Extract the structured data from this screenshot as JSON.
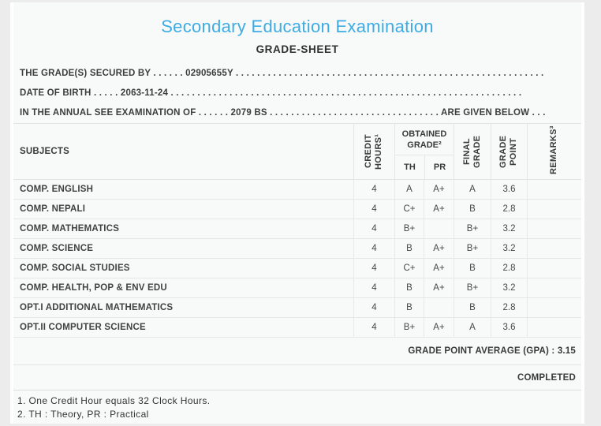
{
  "page": {
    "title": "Secondary Education Examination",
    "subtitle": "GRADE-SHEET"
  },
  "colors": {
    "title_accent": "#3dace4",
    "panel_background": "#f8f9f9",
    "outer_background": "#ececec",
    "table_border": "#e6e6e6",
    "text": "#3f3f3f"
  },
  "info_lines": [
    "THE GRADE(S) SECURED BY . . . . . . 02905655Y . . . . . . . . . . . . . . . . . . . . . . . . . . . . . . . . . . . . . . . . . . . . . . . . . . . . . . . . . .",
    "DATE OF BIRTH . . . . . 2063-11-24 . . . . . . . . . . . . . . . . . . . . . . . . . . . . . . . . . . . . . . . . . . . . . . . . . . . . . . . . . . . . . . . . . .",
    "IN THE ANNUAL SEE EXAMINATION OF . . . . . . 2079 BS . . . . . . . . . . . . . . . . . . . . . . . . . . . . . . . . ARE GIVEN BELOW . . ."
  ],
  "table": {
    "headers": {
      "subjects": "SUBJECTS",
      "credit_hours": "CREDIT HOURS¹",
      "obtained_grade": "OBTAINED GRADE²",
      "th": "TH",
      "pr": "PR",
      "final_grade": "FINAL GRADE",
      "grade_point": "GRADE POINT",
      "remarks": "REMARKS³"
    },
    "rows": [
      {
        "subject": "COMP. ENGLISH",
        "credit": "4",
        "th": "A",
        "pr": "A+",
        "final": "A",
        "point": "3.6",
        "remarks": ""
      },
      {
        "subject": "COMP. NEPALI",
        "credit": "4",
        "th": "C+",
        "pr": "A+",
        "final": "B",
        "point": "2.8",
        "remarks": ""
      },
      {
        "subject": "COMP. MATHEMATICS",
        "credit": "4",
        "th": "B+",
        "pr": "",
        "final": "B+",
        "point": "3.2",
        "remarks": ""
      },
      {
        "subject": "COMP. SCIENCE",
        "credit": "4",
        "th": "B",
        "pr": "A+",
        "final": "B+",
        "point": "3.2",
        "remarks": ""
      },
      {
        "subject": "COMP. SOCIAL STUDIES",
        "credit": "4",
        "th": "C+",
        "pr": "A+",
        "final": "B",
        "point": "2.8",
        "remarks": ""
      },
      {
        "subject": "COMP. HEALTH, POP & ENV EDU",
        "credit": "4",
        "th": "B",
        "pr": "A+",
        "final": "B+",
        "point": "3.2",
        "remarks": ""
      },
      {
        "subject": "OPT.I ADDITIONAL MATHEMATICS",
        "credit": "4",
        "th": "B",
        "pr": "",
        "final": "B",
        "point": "2.8",
        "remarks": ""
      },
      {
        "subject": "OPT.II COMPUTER SCIENCE",
        "credit": "4",
        "th": "B+",
        "pr": "A+",
        "final": "A",
        "point": "3.6",
        "remarks": ""
      }
    ]
  },
  "summary": {
    "gpa_line": "GRADE POINT AVERAGE (GPA) : 3.15",
    "status": "COMPLETED"
  },
  "footnotes": [
    "1. One Credit Hour equals 32 Clock Hours.",
    "2. TH : Theory, PR : Practical"
  ]
}
